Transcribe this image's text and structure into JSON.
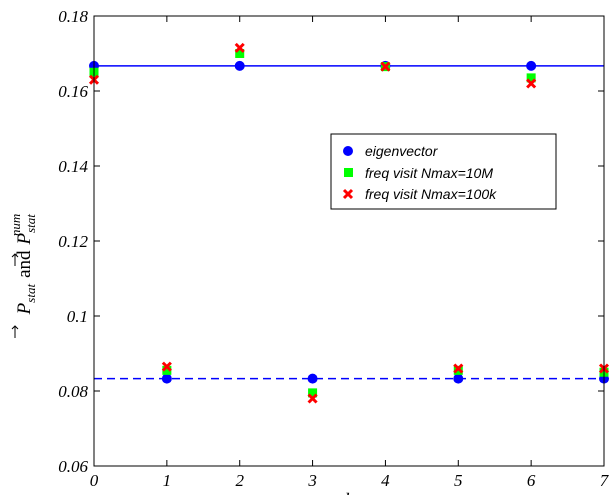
{
  "chart_data": {
    "type": "scatter",
    "x": [
      0,
      1,
      2,
      3,
      4,
      5,
      6,
      7
    ],
    "xlim": [
      0,
      7
    ],
    "ylim": [
      0.06,
      0.18
    ],
    "xticks": [
      "0",
      "1",
      "2",
      "3",
      "4",
      "5",
      "6",
      "7"
    ],
    "yticks": [
      "0.06",
      "0.08",
      "0.1",
      "0.12",
      "0.14",
      "0.16",
      "0.18"
    ],
    "xlabel": "k",
    "ylabel": {
      "prefix": "P",
      "prefix_sub": "stat",
      "conj": "and",
      "suffix": "P",
      "suffix_sub": "stat",
      "suffix_sup": "num"
    },
    "grid": false,
    "legend_position": "upper-right",
    "series": [
      {
        "name": "eigenvector",
        "marker": "circle",
        "color": "#0000ff",
        "values": [
          0.1667,
          0.0833,
          0.1667,
          0.0833,
          0.1667,
          0.0833,
          0.1667,
          0.0833
        ]
      },
      {
        "name": "freq visit Nmax=10M",
        "marker": "square",
        "color": "#00ff00",
        "values": [
          0.165,
          0.0855,
          0.17,
          0.0795,
          0.1665,
          0.0855,
          0.1635,
          0.085
        ]
      },
      {
        "name": "freq visit Nmax=100k",
        "marker": "x",
        "color": "#ff0000",
        "values": [
          0.163,
          0.0865,
          0.1715,
          0.078,
          0.1665,
          0.086,
          0.162,
          0.086
        ]
      }
    ],
    "reference_lines": [
      {
        "y": 0.1667,
        "style": "solid",
        "color": "#0000ff"
      },
      {
        "y": 0.0833,
        "style": "dashed",
        "color": "#0000ff"
      }
    ]
  }
}
